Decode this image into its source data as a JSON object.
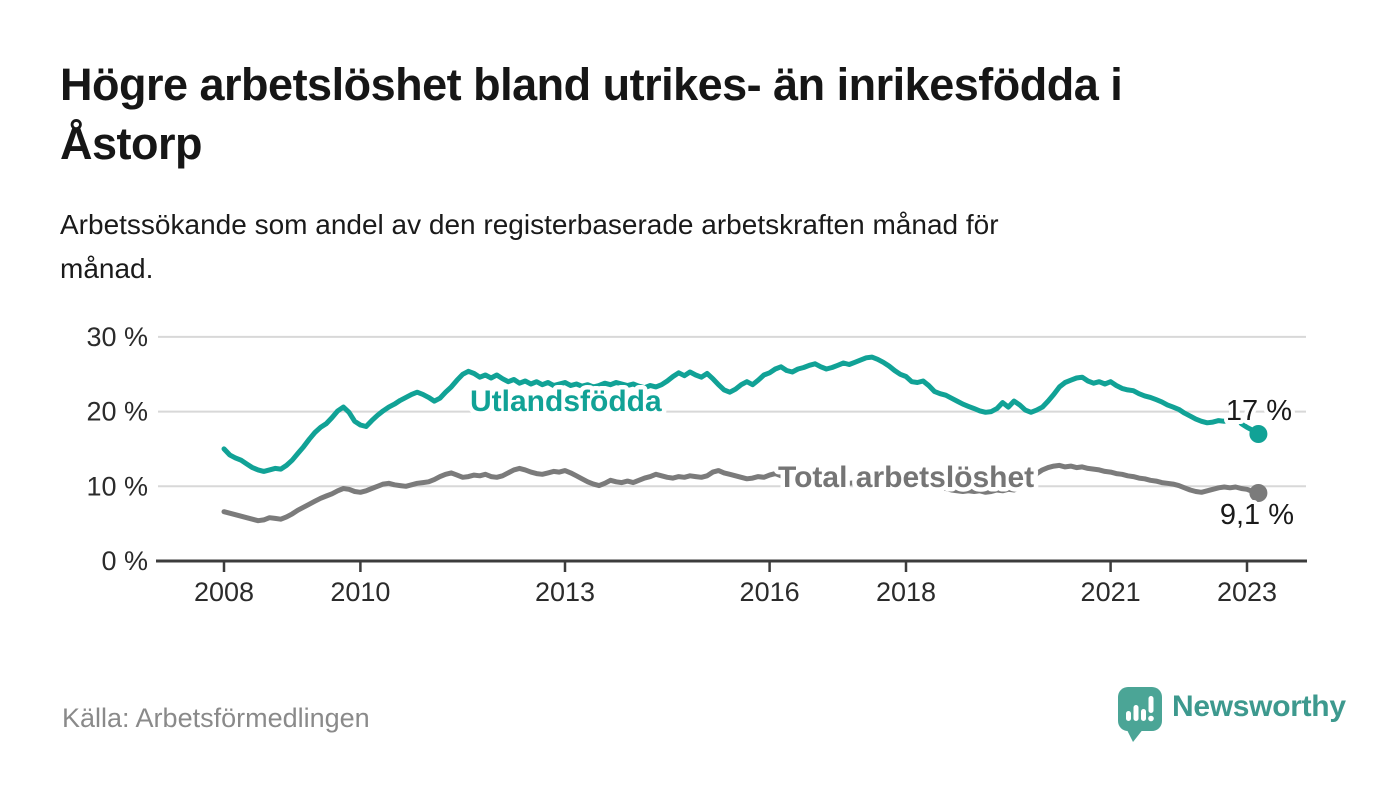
{
  "header": {
    "title_lines": [
      "Högre arbetslöshet bland utrikes- än inrikesfödda i",
      "Åstorp"
    ],
    "subtitle_lines": [
      "Arbetssökande som andel av den registerbaserade arbetskraften månad för",
      "månad."
    ]
  },
  "footer": {
    "source": "Källa: Arbetsförmedlingen",
    "brand": "Newsworthy"
  },
  "colors": {
    "teal_line": "#11A296",
    "gray_line": "#7B7B7B",
    "gray_label": "#757575",
    "grid": "#D8D8D8",
    "axis": "#3C3C3C",
    "axis_label": "#2B2B2B",
    "value_label": "#1A1A1A",
    "title_text": "#161616",
    "muted_text": "#8A8A8A",
    "brand_mark": "#4BA596",
    "brand_text": "#3D998E"
  },
  "chart_data": {
    "type": "line",
    "title": "Högre arbetslöshet bland utrikes- än inrikesfödda i Åstorp",
    "subtitle": "Arbetssökande som andel av den registerbaserade arbetskraften månad för månad.",
    "unit": "%",
    "frequency": "monthly",
    "x_start": "2008-01",
    "x_end": "2023-03",
    "ylim": [
      0,
      30
    ],
    "grid": "horizontal",
    "legend_position": "inline-labels",
    "y_ticks": [
      {
        "value": 0,
        "label": "0 %"
      },
      {
        "value": 10,
        "label": "10 %"
      },
      {
        "value": 20,
        "label": "20 %"
      },
      {
        "value": 30,
        "label": "30 %"
      }
    ],
    "x_ticks": [
      2008,
      2010,
      2013,
      2016,
      2018,
      2021,
      2023
    ],
    "series": [
      {
        "name": "Utlandsfödda",
        "color": "#11A296",
        "end_label": "17 %",
        "end_value": 17.0,
        "values": [
          15.0,
          14.2,
          13.8,
          13.5,
          13.0,
          12.5,
          12.2,
          12.0,
          12.2,
          12.4,
          12.3,
          12.8,
          13.5,
          14.4,
          15.3,
          16.3,
          17.2,
          17.9,
          18.4,
          19.2,
          20.1,
          20.6,
          19.9,
          18.7,
          18.2,
          18.0,
          18.8,
          19.5,
          20.1,
          20.6,
          21.0,
          21.5,
          21.9,
          22.3,
          22.6,
          22.3,
          21.9,
          21.4,
          21.8,
          22.6,
          23.3,
          24.2,
          25.0,
          25.4,
          25.1,
          24.6,
          24.9,
          24.5,
          24.9,
          24.4,
          24.0,
          24.3,
          23.8,
          24.1,
          23.7,
          24.0,
          23.6,
          23.9,
          23.5,
          23.7,
          23.9,
          23.5,
          23.7,
          23.4,
          23.6,
          23.3,
          23.5,
          23.8,
          23.6,
          23.9,
          23.7,
          23.5,
          23.7,
          23.4,
          23.2,
          23.5,
          23.3,
          23.6,
          24.1,
          24.7,
          25.2,
          24.8,
          25.3,
          24.9,
          24.6,
          25.1,
          24.4,
          23.6,
          22.9,
          22.6,
          23.0,
          23.6,
          24.0,
          23.6,
          24.2,
          24.9,
          25.2,
          25.7,
          26.0,
          25.5,
          25.3,
          25.7,
          25.9,
          26.2,
          26.4,
          26.0,
          25.7,
          25.9,
          26.2,
          26.5,
          26.3,
          26.6,
          26.9,
          27.2,
          27.3,
          27.0,
          26.6,
          26.1,
          25.5,
          25.0,
          24.7,
          24.0,
          23.9,
          24.1,
          23.5,
          22.7,
          22.4,
          22.2,
          21.8,
          21.4,
          21.0,
          20.7,
          20.4,
          20.1,
          19.9,
          20.0,
          20.4,
          21.2,
          20.6,
          21.4,
          20.9,
          20.2,
          19.9,
          20.2,
          20.6,
          21.4,
          22.3,
          23.3,
          23.9,
          24.2,
          24.5,
          24.6,
          24.1,
          23.8,
          24.0,
          23.7,
          24.0,
          23.5,
          23.1,
          22.9,
          22.8,
          22.4,
          22.1,
          21.9,
          21.6,
          21.3,
          20.9,
          20.6,
          20.3,
          19.8,
          19.4,
          19.0,
          18.7,
          18.5,
          18.6,
          18.8,
          18.7,
          19.2,
          19.9,
          18.4,
          17.9,
          17.5,
          17.0
        ]
      },
      {
        "name": "Total arbetslöshet",
        "color": "#7B7B7B",
        "end_label": "9,1 %",
        "end_value": 9.1,
        "values": [
          6.6,
          6.4,
          6.2,
          6.0,
          5.8,
          5.6,
          5.4,
          5.5,
          5.8,
          5.7,
          5.6,
          5.9,
          6.3,
          6.8,
          7.2,
          7.6,
          8.0,
          8.4,
          8.7,
          9.0,
          9.4,
          9.7,
          9.6,
          9.3,
          9.2,
          9.4,
          9.7,
          10.0,
          10.3,
          10.4,
          10.2,
          10.1,
          10.0,
          10.2,
          10.4,
          10.5,
          10.6,
          10.9,
          11.3,
          11.6,
          11.8,
          11.5,
          11.2,
          11.3,
          11.5,
          11.4,
          11.6,
          11.3,
          11.2,
          11.4,
          11.8,
          12.2,
          12.4,
          12.2,
          11.9,
          11.7,
          11.6,
          11.8,
          12.0,
          11.9,
          12.1,
          11.8,
          11.4,
          11.0,
          10.6,
          10.3,
          10.1,
          10.4,
          10.8,
          10.6,
          10.5,
          10.7,
          10.5,
          10.8,
          11.1,
          11.3,
          11.6,
          11.4,
          11.2,
          11.1,
          11.3,
          11.2,
          11.4,
          11.3,
          11.2,
          11.4,
          11.9,
          12.1,
          11.8,
          11.6,
          11.4,
          11.2,
          11.0,
          11.1,
          11.3,
          11.2,
          11.5,
          11.7,
          11.4,
          11.2,
          11.0,
          10.9,
          10.7,
          10.8,
          10.6,
          10.7,
          10.5,
          10.6,
          10.7,
          10.5,
          10.4,
          10.5,
          10.3,
          10.4,
          10.2,
          10.3,
          10.1,
          10.2,
          10.0,
          10.1,
          10.2,
          10.0,
          10.1,
          9.9,
          10.0,
          9.8,
          9.9,
          9.7,
          9.5,
          9.4,
          9.3,
          9.4,
          9.3,
          9.4,
          9.2,
          9.3,
          9.5,
          9.4,
          9.6,
          9.5,
          9.8,
          10.3,
          11.0,
          11.7,
          12.2,
          12.5,
          12.7,
          12.8,
          12.6,
          12.7,
          12.5,
          12.6,
          12.4,
          12.3,
          12.2,
          12.0,
          11.9,
          11.7,
          11.6,
          11.4,
          11.3,
          11.1,
          11.0,
          10.8,
          10.7,
          10.5,
          10.4,
          10.3,
          10.1,
          9.8,
          9.5,
          9.3,
          9.2,
          9.4,
          9.6,
          9.8,
          9.9,
          9.8,
          9.9,
          9.7,
          9.6,
          9.3,
          9.1
        ]
      }
    ]
  }
}
